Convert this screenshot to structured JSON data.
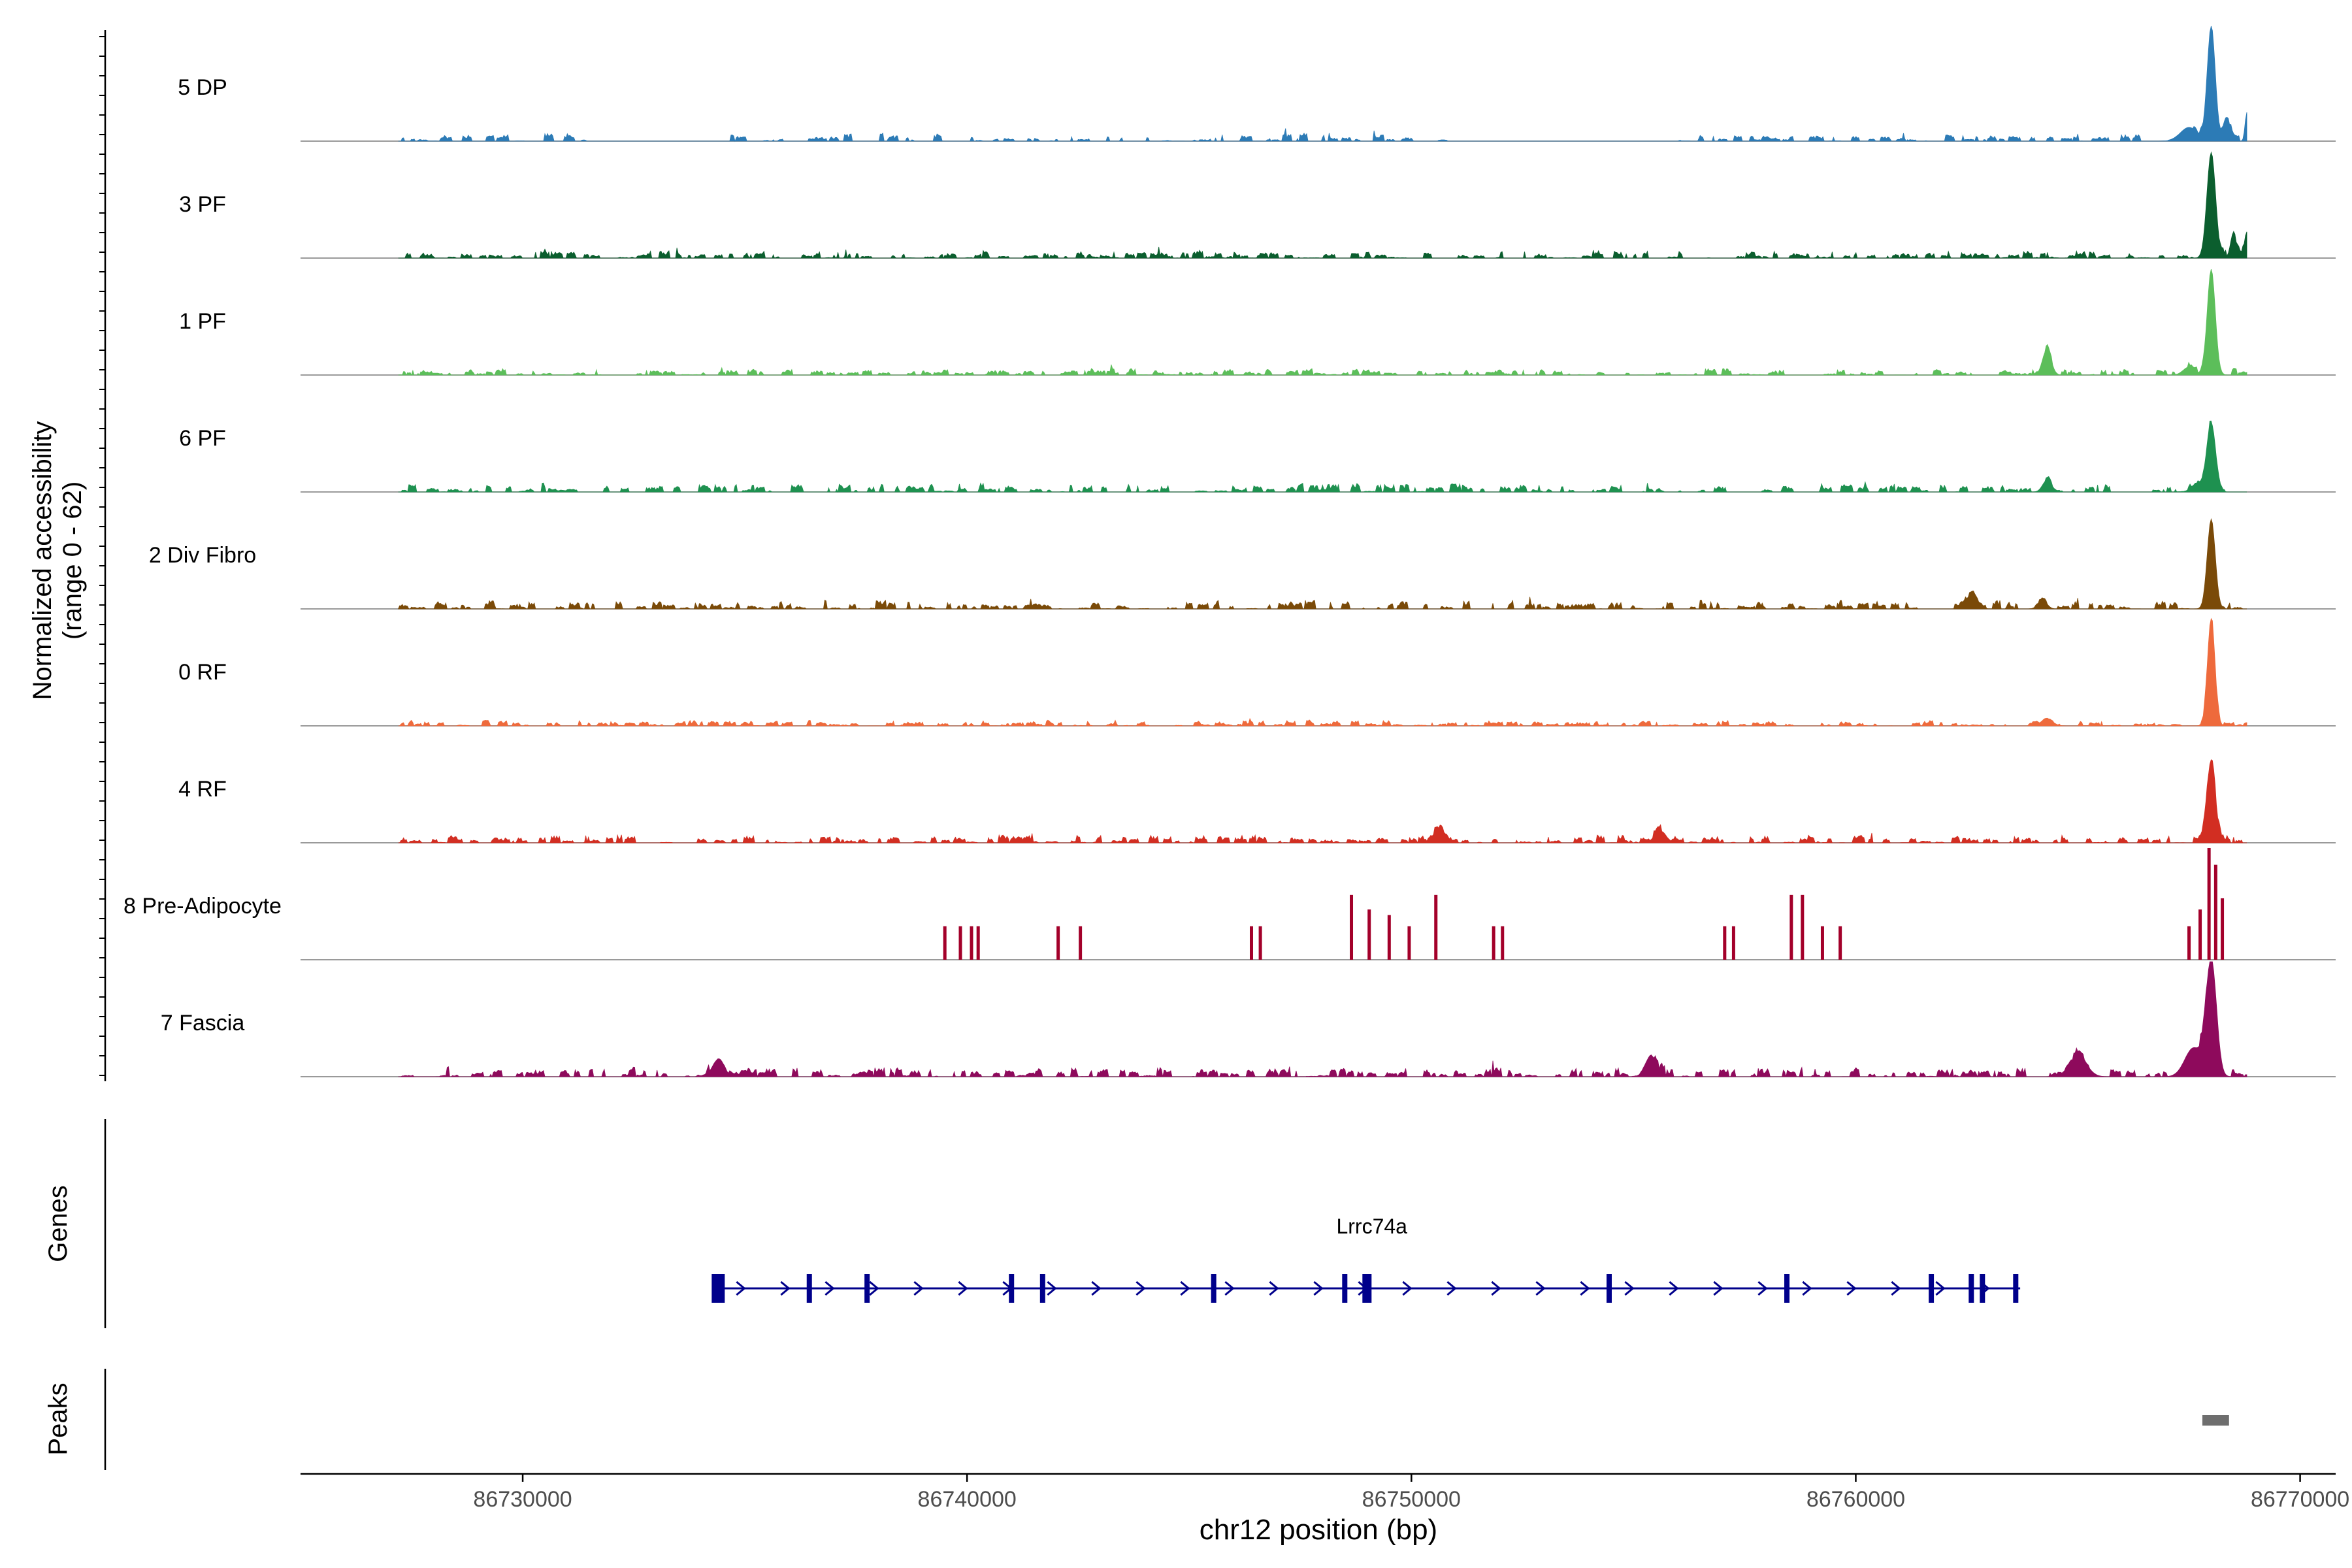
{
  "chart_data": {
    "type": "area",
    "title": "",
    "xlabel": "chr12 position (bp)",
    "ylabel": "Normalized accessibility",
    "ylabel_range": "(range 0 - 62)",
    "ylim": [
      0,
      62
    ],
    "xlim": [
      86725000,
      86770800
    ],
    "x_ticks": [
      86730000,
      86740000,
      86750000,
      86760000,
      86770000
    ],
    "x_tick_labels": [
      "86730000",
      "86740000",
      "86750000",
      "86760000",
      "86770000"
    ],
    "track_xrange": [
      86727200,
      86768800
    ],
    "tracks": [
      {
        "name": "5 DP",
        "color": "#2C7BB6",
        "seed": 11,
        "density": 0.55,
        "noise": 0.07,
        "gaps": [
          [
            86731800,
            86734600
          ],
          [
            86750800,
            86756000
          ]
        ],
        "peaks": [
          [
            86768000,
            1.0,
            140
          ],
          [
            86768350,
            0.2,
            120
          ],
          [
            86768800,
            0.25,
            60
          ],
          [
            86767500,
            0.12,
            300
          ]
        ]
      },
      {
        "name": "3 PF",
        "color": "#0B5E2E",
        "seed": 23,
        "density": 0.7,
        "noise": 0.07,
        "gaps": [],
        "peaks": [
          [
            86768000,
            0.92,
            150
          ],
          [
            86768500,
            0.22,
            100
          ],
          [
            86768800,
            0.22,
            80
          ]
        ]
      },
      {
        "name": "1 PF",
        "color": "#5CBE5A",
        "seed": 37,
        "density": 0.7,
        "noise": 0.06,
        "gaps": [],
        "peaks": [
          [
            86768000,
            0.92,
            140
          ],
          [
            86764300,
            0.22,
            150
          ],
          [
            86767500,
            0.07,
            200
          ]
        ]
      },
      {
        "name": "6 PF",
        "color": "#1E9150",
        "seed": 41,
        "density": 0.65,
        "noise": 0.08,
        "gaps": [],
        "peaks": [
          [
            86768000,
            0.58,
            150
          ],
          [
            86764300,
            0.1,
            150
          ],
          [
            86767700,
            0.07,
            200
          ]
        ]
      },
      {
        "name": "2 Div Fibro",
        "color": "#7A4A08",
        "seed": 53,
        "density": 0.75,
        "noise": 0.08,
        "gaps": [],
        "peaks": [
          [
            86768000,
            0.78,
            140
          ],
          [
            86762600,
            0.12,
            200
          ],
          [
            86764200,
            0.08,
            150
          ]
        ]
      },
      {
        "name": "0 RF",
        "color": "#EE6A3C",
        "seed": 67,
        "density": 0.7,
        "noise": 0.05,
        "gaps": [],
        "peaks": [
          [
            86768000,
            0.9,
            130
          ],
          [
            86764300,
            0.06,
            200
          ]
        ]
      },
      {
        "name": "4 RF",
        "color": "#D22E22",
        "seed": 79,
        "density": 0.75,
        "noise": 0.07,
        "gaps": [],
        "peaks": [
          [
            86768000,
            0.68,
            150
          ],
          [
            86750600,
            0.1,
            200
          ],
          [
            86755600,
            0.1,
            200
          ]
        ]
      },
      {
        "name": "8 Pre-Adipocyte",
        "color": "#A3002A",
        "seed": 97,
        "density": 0.0,
        "noise": 0.0,
        "gaps": [],
        "bars": [
          [
            86739500,
            0.3
          ],
          [
            86739850,
            0.3
          ],
          [
            86740100,
            0.3
          ],
          [
            86740250,
            0.3
          ],
          [
            86742050,
            0.3
          ],
          [
            86742550,
            0.3
          ],
          [
            86746400,
            0.3
          ],
          [
            86746600,
            0.3
          ],
          [
            86748650,
            0.58
          ],
          [
            86749050,
            0.45
          ],
          [
            86749500,
            0.4
          ],
          [
            86749950,
            0.3
          ],
          [
            86750550,
            0.58
          ],
          [
            86751850,
            0.3
          ],
          [
            86752050,
            0.3
          ],
          [
            86757050,
            0.3
          ],
          [
            86757250,
            0.3
          ],
          [
            86758550,
            0.58
          ],
          [
            86758800,
            0.58
          ],
          [
            86759250,
            0.3
          ],
          [
            86759650,
            0.3
          ],
          [
            86767500,
            0.3
          ],
          [
            86767750,
            0.45
          ],
          [
            86767950,
            1.0
          ],
          [
            86768100,
            0.85
          ],
          [
            86768250,
            0.55
          ]
        ]
      },
      {
        "name": "7 Fascia",
        "color": "#8E0A5C",
        "seed": 113,
        "density": 0.7,
        "noise": 0.09,
        "gaps": [],
        "peaks": [
          [
            86768000,
            1.0,
            180
          ],
          [
            86767600,
            0.25,
            300
          ],
          [
            86765000,
            0.18,
            300
          ],
          [
            86755400,
            0.18,
            200
          ],
          [
            86734400,
            0.15,
            200
          ]
        ]
      }
    ],
    "gene": {
      "name": "Lrrc74a",
      "start": 86734400,
      "end": 86763700,
      "strand": "+",
      "exons": [
        86734400,
        86736450,
        86737750,
        86741000,
        86741700,
        86745550,
        86748500,
        86749000,
        86754450,
        86758450,
        86761700,
        86762600,
        86762850,
        86763600
      ]
    },
    "peaks_track": [
      [
        86767800,
        86768400
      ]
    ],
    "panel_labels": {
      "genes": "Genes",
      "peaks": "Peaks"
    }
  }
}
